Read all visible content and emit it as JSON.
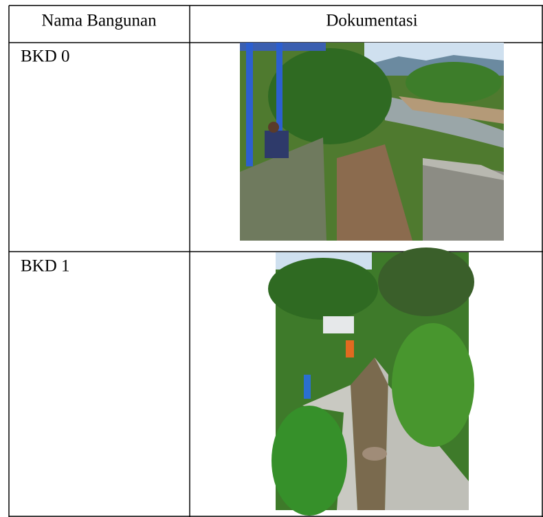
{
  "table": {
    "header": [
      "Nama Bangunan",
      "Dokumentasi"
    ],
    "rows": [
      [
        "BKD 0"
      ],
      [
        "BKD 1"
      ]
    ]
  }
}
